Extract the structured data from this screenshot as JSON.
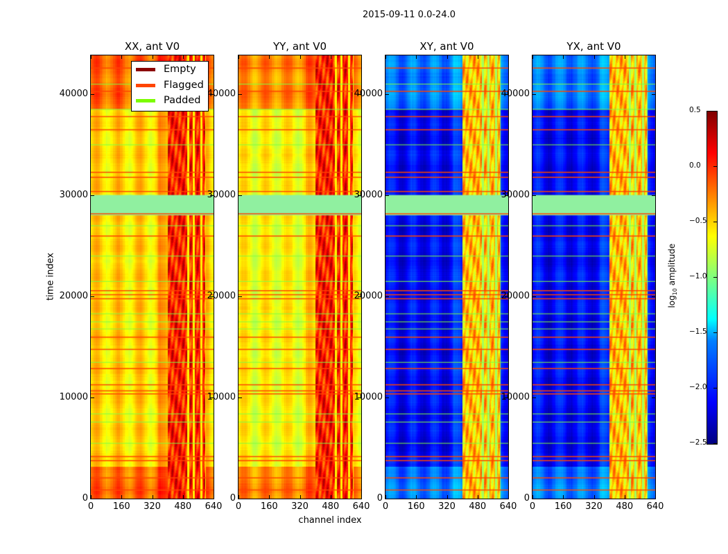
{
  "figure_title": "2015-09-11 0.0-24.0",
  "chart_data": [
    {
      "type": "heatmap",
      "title": "XX, ant V0",
      "xlabel": "",
      "ylabel": "time index",
      "xlim": [
        0,
        640
      ],
      "ylim": [
        0,
        43800
      ],
      "xticks": [
        0,
        160,
        320,
        480,
        640
      ],
      "yticks": [
        0,
        10000,
        20000,
        30000,
        40000
      ],
      "base_log10": -0.6,
      "rfi_log10": 0.0
    },
    {
      "type": "heatmap",
      "title": "YY, ant V0",
      "xlabel": "channel index",
      "ylabel": "",
      "xlim": [
        0,
        640
      ],
      "ylim": [
        0,
        43800
      ],
      "xticks": [
        0,
        160,
        320,
        480,
        640
      ],
      "yticks": [
        0,
        10000,
        20000,
        30000,
        40000
      ],
      "base_log10": -0.7,
      "rfi_log10": 0.0
    },
    {
      "type": "heatmap",
      "title": "XY, ant V0",
      "xlabel": "",
      "ylabel": "",
      "xlim": [
        0,
        640
      ],
      "ylim": [
        0,
        43800
      ],
      "xticks": [
        0,
        160,
        320,
        480,
        640
      ],
      "yticks": [
        0,
        10000,
        20000,
        30000,
        40000
      ],
      "base_log10": -2.2,
      "rfi_log10": -0.5
    },
    {
      "type": "heatmap",
      "title": "YX, ant V0",
      "xlabel": "",
      "ylabel": "",
      "xlim": [
        0,
        640
      ],
      "ylim": [
        0,
        43800
      ],
      "xticks": [
        0,
        160,
        320,
        480,
        640
      ],
      "yticks": [
        0,
        10000,
        20000,
        30000,
        40000
      ],
      "base_log10": -2.2,
      "rfi_log10": -0.5
    }
  ],
  "legend": {
    "placement": "top-left of first panel",
    "items": [
      {
        "label": "Empty",
        "color": "#8b0000"
      },
      {
        "label": "Flagged",
        "color": "#ff4500"
      },
      {
        "label": "Padded",
        "color": "#7cfc00"
      }
    ]
  },
  "colorbar": {
    "label_main": "log",
    "label_sub": "10",
    "label_rest": " amplitude",
    "vmin": -2.5,
    "vmax": 0.5,
    "ticks": [
      "0.5",
      "0.0",
      "−0.5",
      "−1.0",
      "−1.5",
      "−2.0",
      "−2.5"
    ],
    "colormap": "jet"
  },
  "flagged_rows": [
    900,
    2100,
    3800,
    4200,
    10400,
    10700,
    11300,
    12900,
    14800,
    16000,
    19800,
    20200,
    20600,
    26000,
    28200,
    30400,
    31800,
    32300,
    36500,
    37800,
    40300,
    42600
  ],
  "padded_rows": [
    5500,
    7600,
    8400,
    13500,
    16800,
    17500,
    18300,
    21500,
    24000,
    27000,
    35000,
    38500,
    41000
  ],
  "padded_band": [
    28000,
    30000
  ],
  "rfi_channels": [
    400,
    600
  ]
}
